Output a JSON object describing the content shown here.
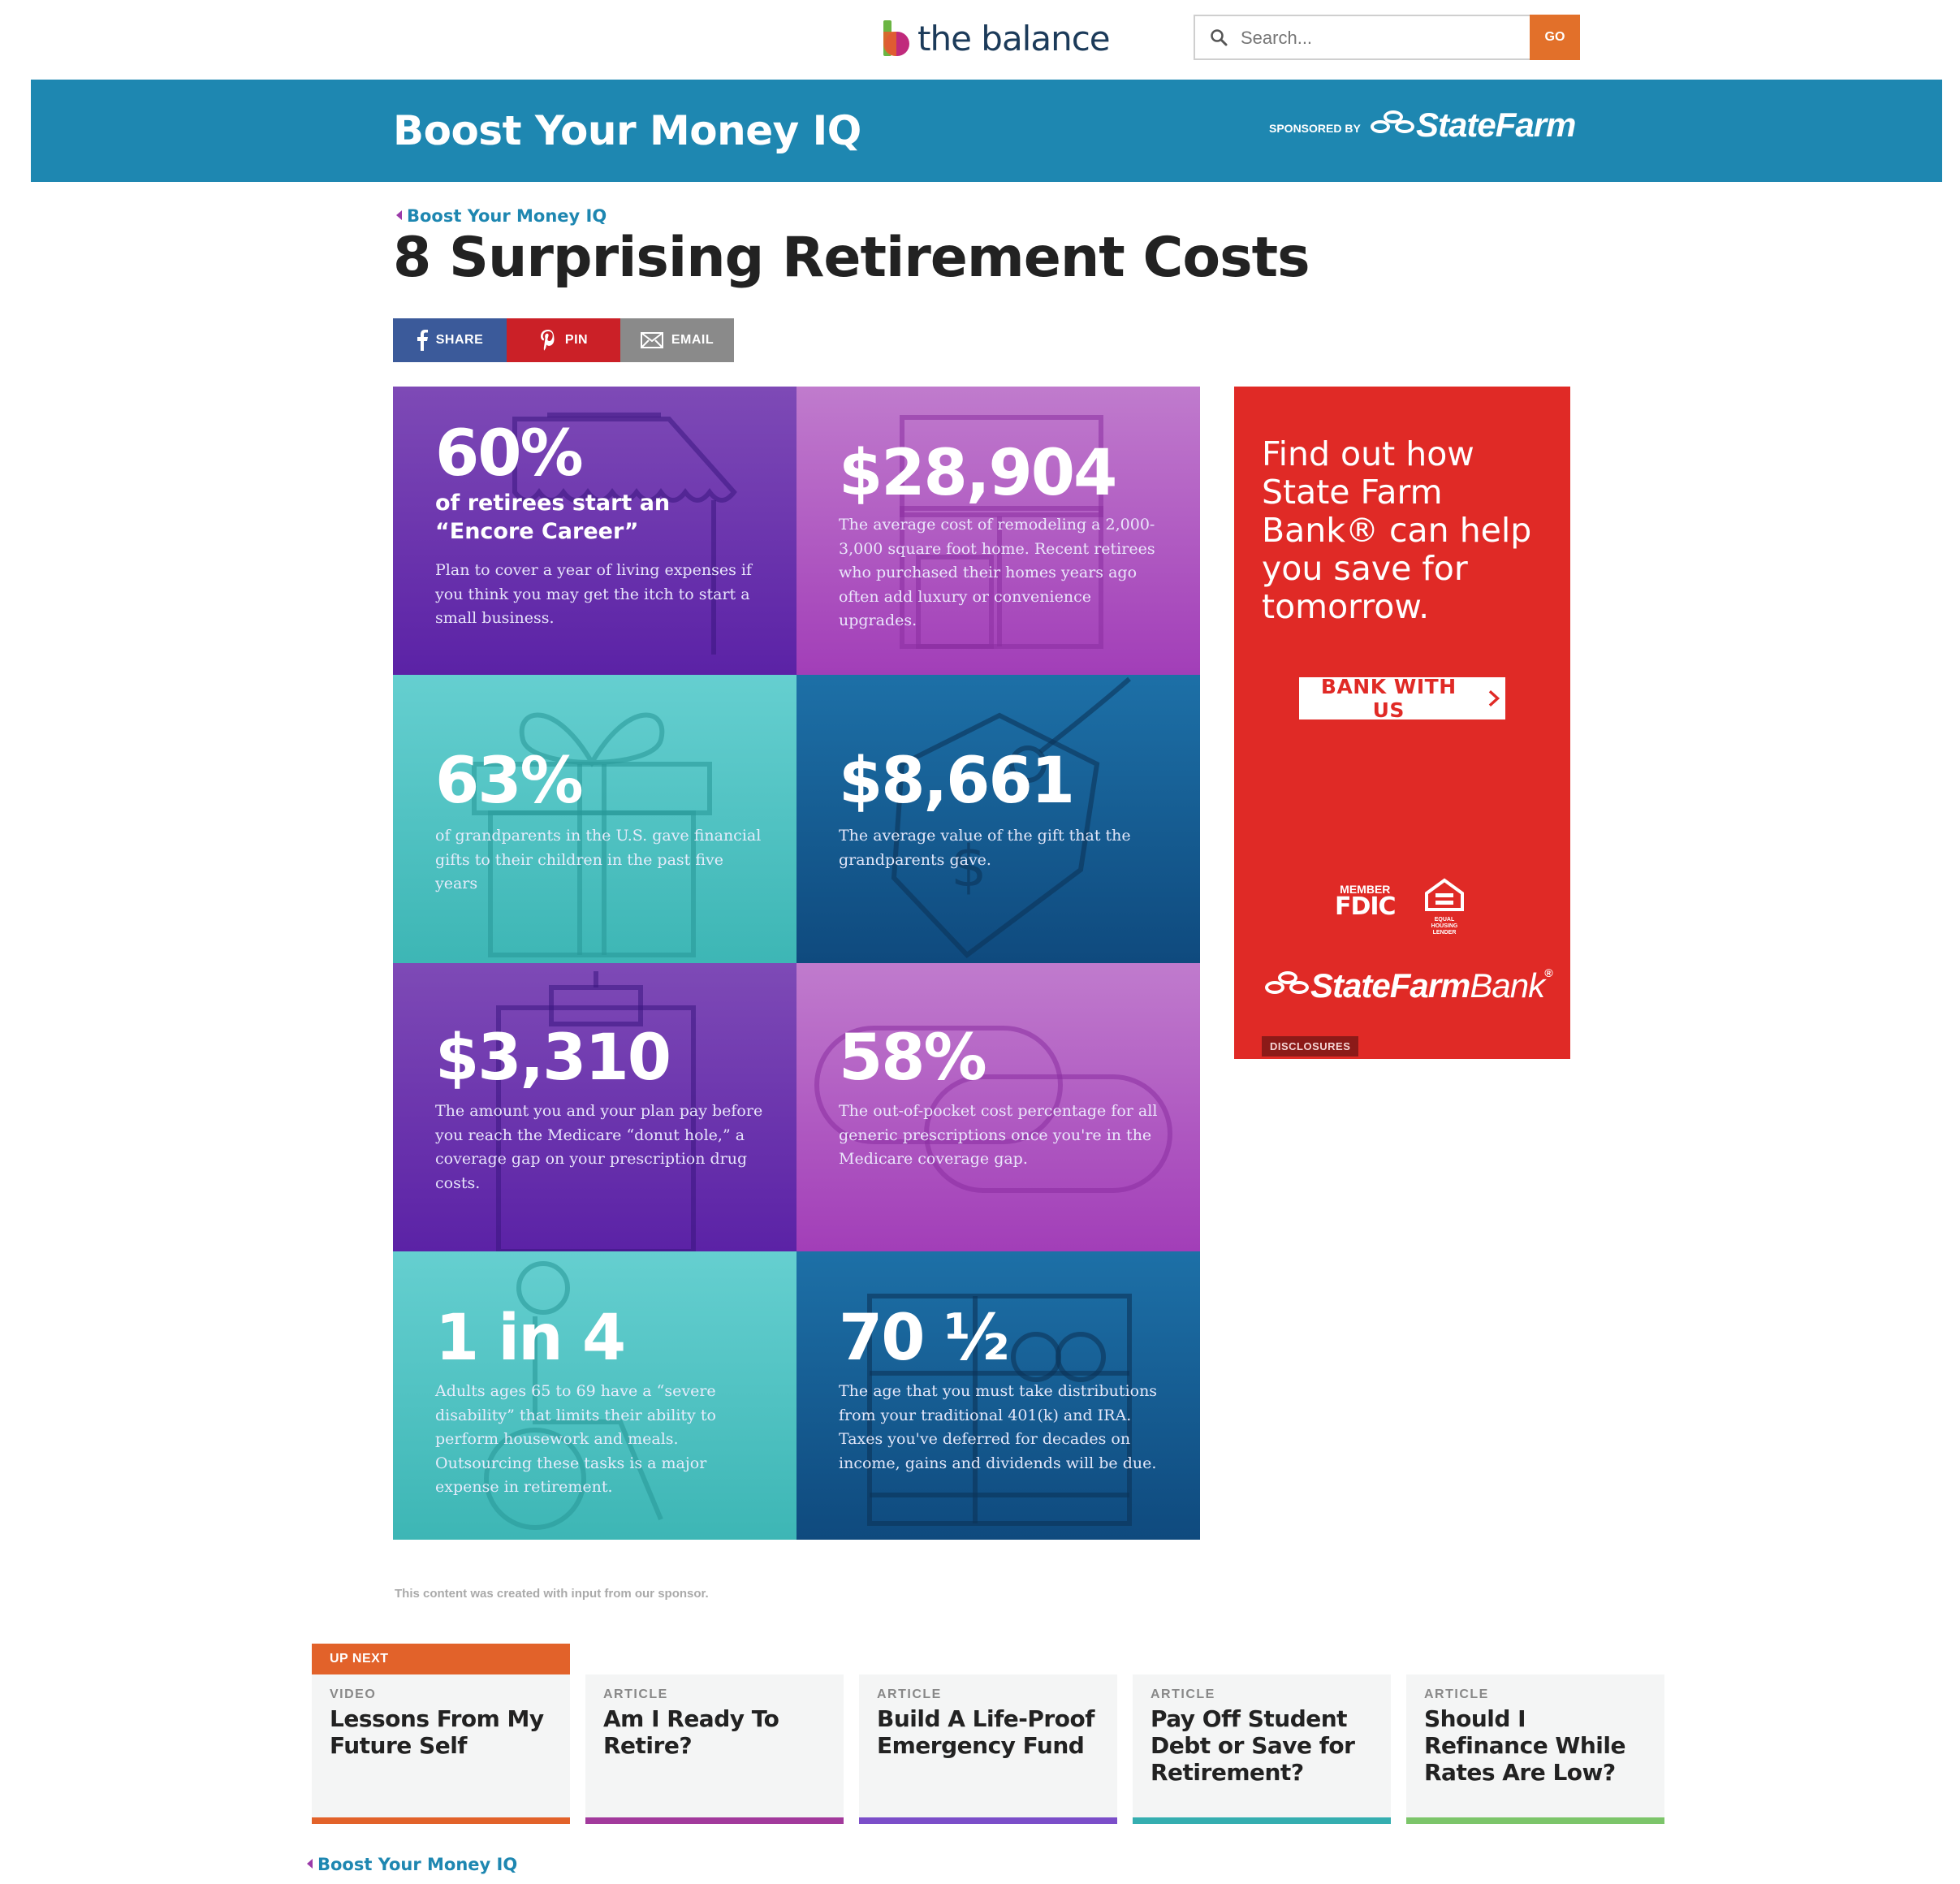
{
  "header": {
    "logo_text": "the balance",
    "search_placeholder": "Search...",
    "go_label": "GO"
  },
  "banner": {
    "title": "Boost Your Money IQ",
    "sponsored_by": "SPONSORED BY",
    "sponsor_name": "StateFarm"
  },
  "breadcrumb": "Boost Your Money IQ",
  "title": "8 Surprising Retirement Costs",
  "share": {
    "facebook": "SHARE",
    "pinterest": "PIN",
    "email": "EMAIL"
  },
  "tiles": [
    {
      "stat": "60%",
      "sub": "of retirees start an “Encore Career”",
      "desc": "Plan to cover a year of living expenses if you think you may get the itch to start a small business."
    },
    {
      "stat": "$28,904",
      "sub": "",
      "desc": "The average cost of remodeling a 2,000-3,000 square foot home. Recent retirees who purchased their homes years ago often add luxury or convenience upgrades."
    },
    {
      "stat": "63%",
      "sub": "",
      "desc": "of grandparents in the U.S. gave financial gifts to their children in the past five years"
    },
    {
      "stat": "$8,661",
      "sub": "",
      "desc": "The average value of the gift that the grandparents gave."
    },
    {
      "stat": "$3,310",
      "sub": "",
      "desc": "The amount you and your plan pay before you reach the Medicare “donut hole,” a coverage gap on your prescription drug costs."
    },
    {
      "stat": "58%",
      "sub": "",
      "desc": "The out-of-pocket cost percentage for all generic prescriptions once you're in the Medicare coverage gap."
    },
    {
      "stat": "1 in 4",
      "sub": "",
      "desc": "Adults ages 65 to 69 have a “severe disability” that limits their ability to perform housework and meals. Outsourcing these tasks is a major expense in retirement."
    },
    {
      "stat": "70 ½",
      "sub": "",
      "desc": "The age that you must take distributions from your traditional 401(k) and IRA. Taxes you've deferred for decades on income, gains and dividends will be due."
    }
  ],
  "ad": {
    "headline": "Find out how State Farm Bank® can help you save for tomorrow.",
    "button": "BANK WITH US",
    "fdic_member": "MEMBER",
    "fdic": "FDIC",
    "ehl": "EQUAL HOUSING LENDER",
    "bank_brand": "StateFarm",
    "bank_word": "Bank",
    "disclosures": "DISCLOSURES"
  },
  "sponsor_note": "This content was created with input from our sponsor.",
  "up_next": {
    "label": "UP NEXT",
    "cards": [
      {
        "kind": "VIDEO",
        "title": "Lessons From My Future Self"
      },
      {
        "kind": "ARTICLE",
        "title": "Am I Ready To Retire?"
      },
      {
        "kind": "ARTICLE",
        "title": "Build A Life-Proof Emergency Fund"
      },
      {
        "kind": "ARTICLE",
        "title": "Pay Off Student Debt or Save for Retirement?"
      },
      {
        "kind": "ARTICLE",
        "title": "Should I Refinance While Rates Are Low?"
      }
    ]
  },
  "colors": {
    "brand_blue": "#1e87b1",
    "orange": "#e2622a",
    "statefarm_red": "#e02a26",
    "card_bars": [
      "#e2622a",
      "#a23a9c",
      "#7b4ec9",
      "#35aeb0",
      "#7cc56a"
    ]
  }
}
